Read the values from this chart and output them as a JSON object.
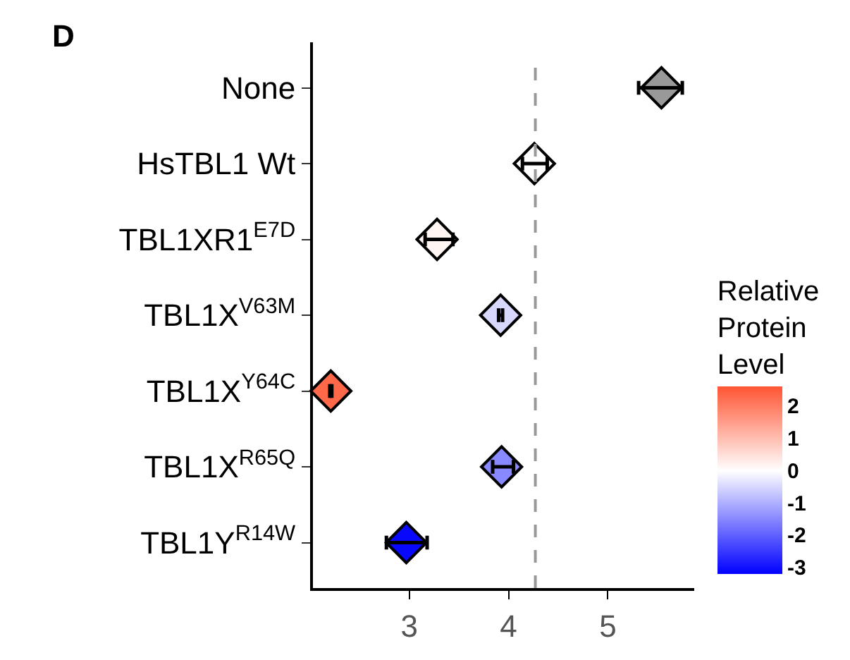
{
  "chart_data": {
    "type": "scatter",
    "orientation": "horizontal",
    "marker": "diamond",
    "categories": [
      "None",
      "HsTBL1 Wt",
      "TBL1XR1$^{E7D}$",
      "TBL1X$^{V63M}$",
      "TBL1X$^{Y64C}$",
      "TBL1X$^{R65Q}$",
      "TBL1Y$^{R14W}$"
    ],
    "values": [
      5.54,
      4.26,
      3.28,
      3.92,
      2.21,
      3.93,
      2.97
    ],
    "errors": [
      [
        5.31,
        5.75
      ],
      [
        4.14,
        4.39
      ],
      [
        3.16,
        3.44
      ],
      [
        3.9,
        3.94
      ],
      [
        2.2,
        2.22
      ],
      [
        3.84,
        4.05
      ],
      [
        2.77,
        3.18
      ]
    ],
    "cvalues": [
      null,
      0,
      0.15,
      -0.5,
      2.3,
      -1.5,
      -3.1
    ],
    "clim": [
      -3.2,
      2.6
    ],
    "cticks": [
      2,
      1,
      0,
      -1,
      -2,
      -3
    ],
    "clabel": "Relative Protein Level",
    "xlim": [
      2.03,
      5.87
    ],
    "xticks": [
      3,
      4,
      5
    ],
    "ref_lines": [
      {
        "axis": "x",
        "value": 4.27,
        "color": "#999999",
        "line_style": "dashed"
      }
    ],
    "annotations": [
      "D"
    ]
  }
}
